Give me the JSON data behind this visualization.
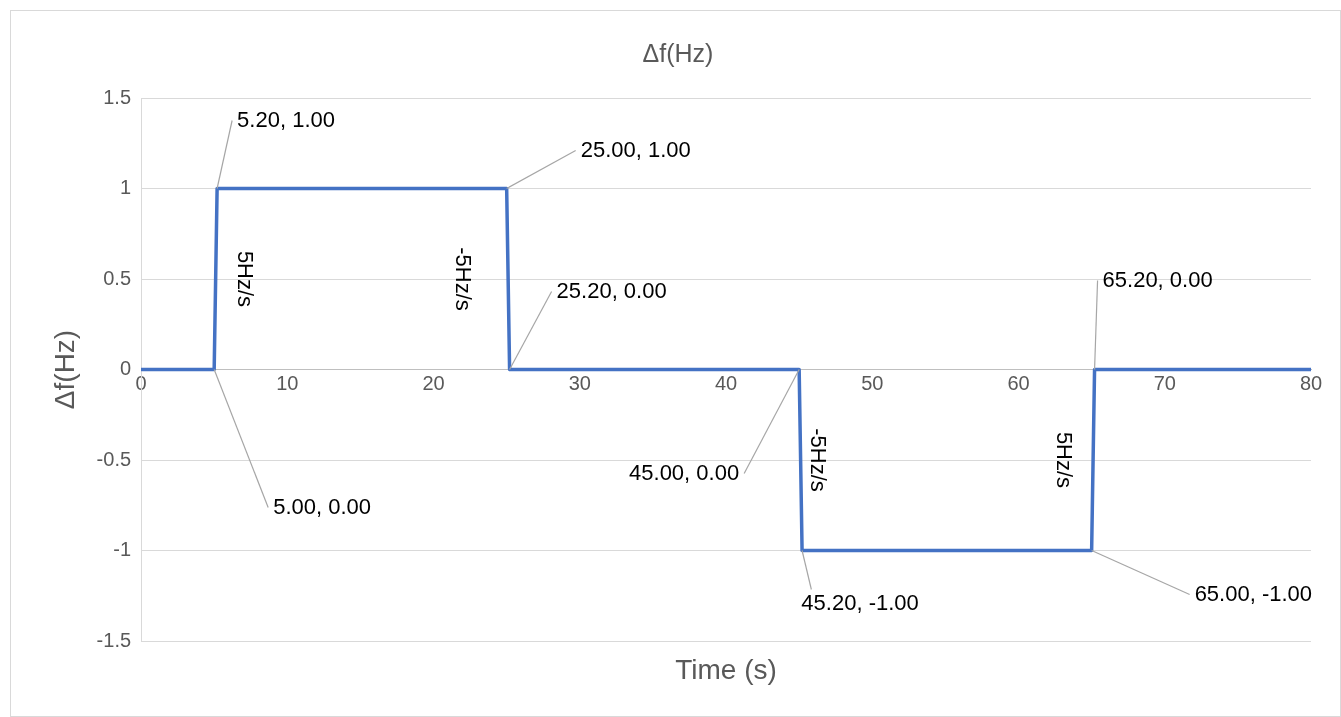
{
  "chart_data": {
    "type": "line",
    "title": "Δf(Hz)",
    "xlabel": "Time (s)",
    "ylabel": "Δf(Hz)",
    "series": [
      {
        "color": "#4472c4",
        "x": [
          0,
          5,
          5.2,
          25,
          25.2,
          45,
          45.2,
          65,
          65.2,
          80
        ],
        "values": [
          0,
          0,
          1,
          1,
          0,
          0,
          -1,
          -1,
          0,
          0
        ]
      }
    ],
    "xlim": [
      0,
      80
    ],
    "xticks": [
      0,
      10,
      20,
      30,
      40,
      50,
      60,
      70,
      80
    ],
    "ylim": [
      -1.5,
      1.5
    ],
    "yticks": [
      -1.5,
      -1,
      -0.5,
      0,
      0.5,
      1,
      1.5
    ],
    "grid": "y",
    "legend": false,
    "marker": "none",
    "line_style": "solid",
    "annotations": [
      {
        "text": "5.20, 1.00",
        "x": 5.2,
        "y": 1
      },
      {
        "text": "25.00, 1.00",
        "x": 25,
        "y": 1
      },
      {
        "text": "25.20, 0.00",
        "x": 25.2,
        "y": 0
      },
      {
        "text": "45.00, 0.00",
        "x": 45,
        "y": 0
      },
      {
        "text": "45.20, -1.00",
        "x": 45.2,
        "y": -1
      },
      {
        "text": "65.00, -1.00",
        "x": 65,
        "y": -1
      },
      {
        "text": "65.20, 0.00",
        "x": 65.2,
        "y": 0
      },
      {
        "text": "5.00, 0.00",
        "x": 5,
        "y": 0
      },
      {
        "text": "5Hz/s",
        "x": 5.1,
        "y": 0.5
      },
      {
        "text": "-5Hz/s",
        "x": 25.1,
        "y": 0.5
      },
      {
        "text": "-5Hz/s",
        "x": 45.1,
        "y": -0.5
      },
      {
        "text": "5Hz/s",
        "x": 65.1,
        "y": -0.5
      }
    ]
  }
}
